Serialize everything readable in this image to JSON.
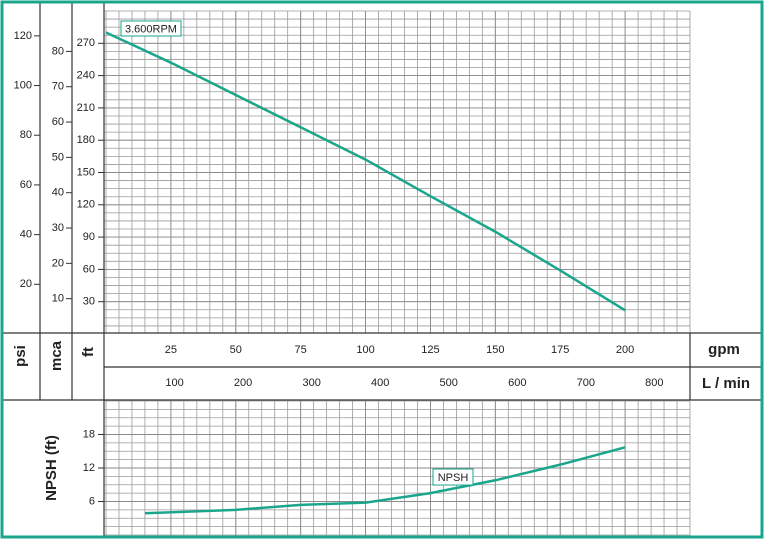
{
  "chart_data": [
    {
      "type": "line",
      "xlabel": "gpm",
      "x2label": "L / min",
      "ylabel": "ft",
      "y2label": "mca",
      "y3label": "psi",
      "x": [
        0,
        25,
        50,
        75,
        100,
        125,
        150,
        175,
        200
      ],
      "xlim": [
        0,
        225
      ],
      "xticks": [
        25,
        50,
        75,
        100,
        125,
        150,
        175,
        200
      ],
      "x2lim": [
        0,
        852
      ],
      "x2ticks": [
        100,
        200,
        300,
        400,
        500,
        600,
        700,
        800
      ],
      "ylim": [
        0,
        300
      ],
      "yticks": [
        30,
        60,
        90,
        120,
        150,
        180,
        210,
        240,
        270
      ],
      "y2lim": [
        0,
        91.44
      ],
      "y2ticks": [
        10,
        20,
        30,
        40,
        50,
        60,
        70,
        80
      ],
      "y3lim": [
        0,
        130
      ],
      "y3ticks": [
        20,
        40,
        60,
        80,
        100,
        120
      ],
      "grid": true,
      "series": [
        {
          "name": "3.600RPM",
          "color": "#1aa68c",
          "values": [
            280,
            252,
            222,
            192,
            162,
            128,
            95,
            59,
            22
          ]
        }
      ]
    },
    {
      "type": "line",
      "ylabel": "NPSH (ft)",
      "x": [
        15,
        50,
        75,
        100,
        125,
        150,
        175,
        200
      ],
      "xlim": [
        0,
        225
      ],
      "ylim": [
        0,
        24
      ],
      "yticks": [
        6,
        12,
        18
      ],
      "grid": true,
      "series": [
        {
          "name": "NPSH",
          "color": "#1aa68c",
          "values": [
            3.9,
            4.5,
            5.4,
            5.8,
            7.5,
            9.8,
            12.6,
            15.7
          ]
        }
      ]
    }
  ]
}
